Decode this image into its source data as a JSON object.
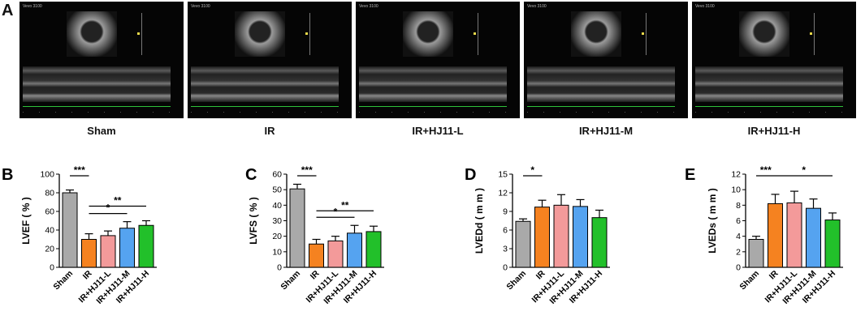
{
  "panel_a": {
    "letter": "A",
    "groups": [
      "Sham",
      "IR",
      "IR+HJ11-L",
      "IR+HJ11-M",
      "IR+HJ11-H"
    ]
  },
  "chart_data": [
    {
      "type": "bar",
      "letter": "B",
      "categories": [
        "Sham",
        "IR",
        "IR+HJ11-L",
        "IR+HJ11-M",
        "IR+HJ11-H"
      ],
      "values": [
        80,
        30,
        34,
        42,
        45
      ],
      "errors": [
        3,
        6,
        5,
        7,
        5
      ],
      "ylabel": "LVEF ( % )",
      "ylim": [
        0,
        100
      ],
      "yticks": [
        0,
        20,
        40,
        60,
        80,
        100
      ],
      "colors": [
        "#a9a9a9",
        "#f58220",
        "#f39a9a",
        "#55a3f0",
        "#22c02a"
      ],
      "significance": [
        {
          "from": 0,
          "to": 1,
          "label": "***"
        },
        {
          "from": 1,
          "to": 3,
          "label": "*"
        },
        {
          "from": 1,
          "to": 4,
          "label": "**"
        }
      ]
    },
    {
      "type": "bar",
      "letter": "C",
      "categories": [
        "Sham",
        "IR",
        "IR+HJ11-L",
        "IR+HJ11-M",
        "IR+HJ11-H"
      ],
      "values": [
        50.5,
        15,
        17,
        22,
        23
      ],
      "errors": [
        3,
        3,
        3,
        5,
        3.5
      ],
      "ylabel": "LVFS ( % )",
      "ylim": [
        0,
        60
      ],
      "yticks": [
        0,
        10,
        20,
        30,
        40,
        50,
        60
      ],
      "colors": [
        "#a9a9a9",
        "#f58220",
        "#f39a9a",
        "#55a3f0",
        "#22c02a"
      ],
      "significance": [
        {
          "from": 0,
          "to": 1,
          "label": "***"
        },
        {
          "from": 1,
          "to": 3,
          "label": "*"
        },
        {
          "from": 1,
          "to": 4,
          "label": "**"
        }
      ]
    },
    {
      "type": "bar",
      "letter": "D",
      "categories": [
        "Sham",
        "IR",
        "IR+HJ11-L",
        "IR+HJ11-M",
        "IR+HJ11-H"
      ],
      "values": [
        7.4,
        9.7,
        10.0,
        9.8,
        8.0
      ],
      "errors": [
        0.4,
        1.1,
        1.7,
        1.1,
        1.2
      ],
      "ylabel": "LVEDd ( m m )",
      "ylim": [
        0,
        15
      ],
      "yticks": [
        0,
        3,
        6,
        9,
        12,
        15
      ],
      "colors": [
        "#a9a9a9",
        "#f58220",
        "#f39a9a",
        "#55a3f0",
        "#22c02a"
      ],
      "significance": [
        {
          "from": 0,
          "to": 1,
          "label": "*"
        }
      ]
    },
    {
      "type": "bar",
      "letter": "E",
      "categories": [
        "Sham",
        "IR",
        "IR+HJ11-L",
        "IR+HJ11-M",
        "IR+HJ11-H"
      ],
      "values": [
        3.6,
        8.2,
        8.3,
        7.6,
        6.1
      ],
      "errors": [
        0.4,
        1.2,
        1.5,
        1.2,
        0.9
      ],
      "ylabel": "LVEDs ( m m )",
      "ylim": [
        0,
        12
      ],
      "yticks": [
        0,
        2,
        4,
        6,
        8,
        10,
        12
      ],
      "colors": [
        "#a9a9a9",
        "#f58220",
        "#f39a9a",
        "#55a3f0",
        "#22c02a"
      ],
      "significance": [
        {
          "from": 0,
          "to": 1,
          "label": "***"
        },
        {
          "from": 1,
          "to": 4,
          "label": "*"
        }
      ]
    }
  ]
}
